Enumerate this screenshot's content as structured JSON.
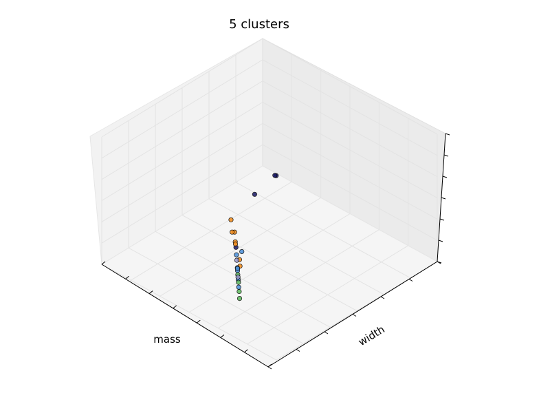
{
  "chart_data": {
    "type": "scatter",
    "projection": "3d",
    "title": "5 clusters",
    "xlabel": "mass",
    "ylabel": "width",
    "zlabel": "",
    "grid": true,
    "legend": "none",
    "series": [
      {
        "color": "#1a1a66",
        "points": [
          [
            0.45,
            0.88,
            0.55
          ],
          [
            0.5,
            0.88,
            0.6
          ],
          [
            1.6,
            1.2,
            0.8
          ],
          [
            3.6,
            2.4,
            0.75
          ]
        ]
      },
      {
        "color": "#f28c1a",
        "points": [
          [
            2.7,
            1.4,
            0.6
          ],
          [
            3.0,
            1.8,
            0.55
          ],
          [
            3.3,
            2.1,
            0.55
          ],
          [
            3.4,
            2.2,
            0.6
          ],
          [
            3.2,
            1.9,
            0.78
          ],
          [
            3.9,
            2.8,
            0.7
          ],
          [
            4.1,
            3.0,
            0.7
          ]
        ]
      },
      {
        "color": "#4a90d9",
        "points": [
          [
            3.6,
            2.6,
            0.7
          ],
          [
            3.8,
            2.6,
            0.7
          ],
          [
            4.2,
            3.0,
            0.7
          ],
          [
            4.3,
            3.1,
            0.72
          ],
          [
            4.6,
            3.4,
            0.75
          ],
          [
            4.8,
            3.6,
            0.7
          ],
          [
            4.3,
            3.1,
            0.82
          ]
        ]
      },
      {
        "color": "#5cb85c",
        "points": [
          [
            4.4,
            3.2,
            0.68
          ],
          [
            4.7,
            3.5,
            0.78
          ],
          [
            5.0,
            3.8,
            0.8
          ],
          [
            5.2,
            4.0,
            0.78
          ]
        ]
      },
      {
        "color": "#9999cc",
        "points": [
          [
            4.0,
            2.8,
            0.75
          ],
          [
            4.5,
            3.3,
            0.72
          ]
        ]
      }
    ]
  }
}
